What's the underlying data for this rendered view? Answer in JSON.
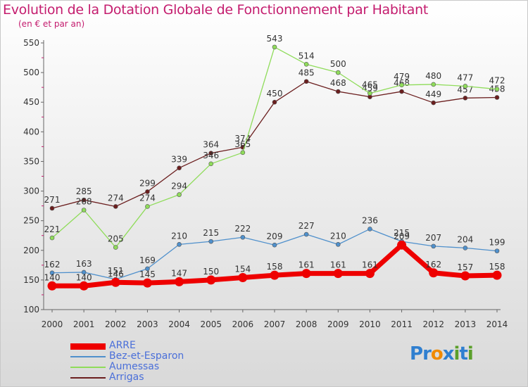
{
  "title": "Evolution de la Dotation Globale de Fonctionnement par Habitant",
  "subtitle": "(en € et par an)",
  "logo": {
    "text": "Proxiti",
    "letters": [
      "P",
      "r",
      "o",
      "x",
      "i",
      "t",
      "i"
    ],
    "colors": [
      "#2f7fd0",
      "#2f7fd0",
      "#f08a00",
      "#2f7fd0",
      "#5a9f2a",
      "#2f7fd0",
      "#5a9f2a"
    ]
  },
  "chart_data": {
    "type": "line",
    "title": "Evolution de la Dotation Globale de Fonctionnement par Habitant",
    "subtitle": "(en € et par an)",
    "x": [
      "2000",
      "2001",
      "2002",
      "2003",
      "2004",
      "2005",
      "2006",
      "2007",
      "2008",
      "2009",
      "2010",
      "2011",
      "2012",
      "2013",
      "2014"
    ],
    "ylim": [
      100,
      550
    ],
    "yticks": [
      100,
      150,
      200,
      250,
      300,
      350,
      400,
      450,
      500,
      550
    ],
    "grid": false,
    "legend_position": "bottom-left",
    "series": [
      {
        "name": "ARRE",
        "color": "#ee0000",
        "values": [
          140,
          140,
          146,
          145,
          147,
          150,
          154,
          158,
          161,
          161,
          161,
          209,
          162,
          157,
          158
        ]
      },
      {
        "name": "Bez-et-Esparon",
        "color": "#4f90cc",
        "values": [
          162,
          163,
          151,
          169,
          210,
          215,
          222,
          209,
          227,
          210,
          236,
          215,
          207,
          204,
          199
        ]
      },
      {
        "name": "Aumessas",
        "color": "#8fdc5a",
        "values": [
          221,
          268,
          205,
          274,
          294,
          346,
          365,
          543,
          514,
          500,
          465,
          479,
          480,
          477,
          472
        ]
      },
      {
        "name": "Arrigas",
        "color": "#6b1e1e",
        "values": [
          271,
          285,
          274,
          299,
          339,
          364,
          374,
          450,
          485,
          468,
          459,
          468,
          449,
          457,
          458
        ]
      }
    ]
  }
}
